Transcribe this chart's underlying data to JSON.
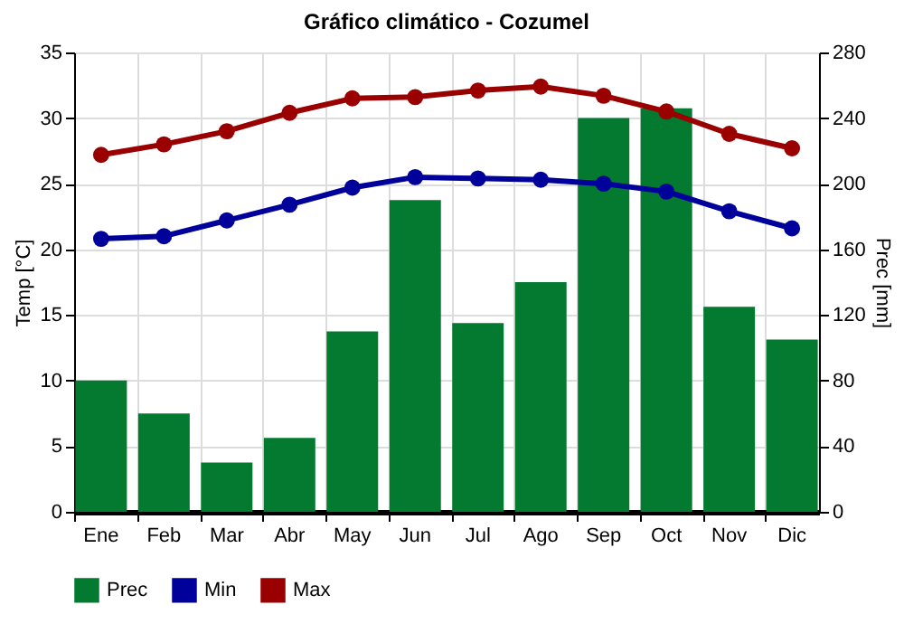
{
  "chart_data": {
    "type": "bar",
    "title": "Gráfico climático - Cozumel",
    "ylabel": "Temp [°C]",
    "y2label": "Prec [mm]",
    "categories": [
      "Ene",
      "Feb",
      "Mar",
      "Abr",
      "May",
      "Jun",
      "Jul",
      "Ago",
      "Sep",
      "Oct",
      "Nov",
      "Dic"
    ],
    "series": [
      {
        "name": "Prec",
        "axis": "y2",
        "color": "#037a2f",
        "values": [
          80,
          60,
          30,
          45,
          110,
          190,
          115,
          140,
          240,
          246,
          125,
          105
        ]
      },
      {
        "name": "Min",
        "type": "line",
        "color": "#00009a",
        "values": [
          20.8,
          21.0,
          22.2,
          23.4,
          24.7,
          25.5,
          25.4,
          25.3,
          25.0,
          24.4,
          22.9,
          21.6
        ]
      },
      {
        "name": "Max",
        "type": "line",
        "color": "#9a0000",
        "values": [
          27.2,
          28.0,
          29.0,
          30.4,
          31.5,
          31.6,
          32.1,
          32.4,
          31.7,
          30.5,
          28.8,
          27.7
        ]
      }
    ],
    "ylim": [
      0,
      35
    ],
    "yticks": [
      0,
      5,
      10,
      15,
      20,
      25,
      30,
      35
    ],
    "y2lim": [
      0,
      280
    ],
    "y2ticks": [
      0,
      40,
      80,
      120,
      160,
      200,
      240,
      280
    ],
    "grid": true,
    "legend": "bottom",
    "marker": "circle",
    "line_style": "solid"
  }
}
